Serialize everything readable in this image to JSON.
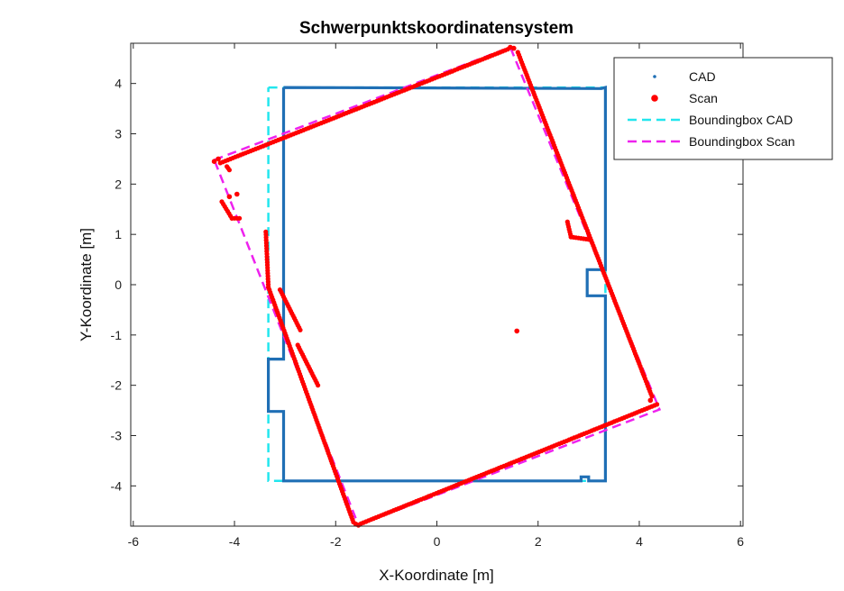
{
  "chart_data": {
    "type": "scatter",
    "title": "Schwerpunktskoordinatensystem",
    "xlabel": "X-Koordinate [m]",
    "ylabel": "Y-Koordinate [m]",
    "xlim": [
      -6.05,
      6.05
    ],
    "ylim": [
      -4.8,
      4.8
    ],
    "x_ticks": [
      -6,
      -4,
      -2,
      0,
      2,
      4,
      6
    ],
    "y_ticks": [
      -4,
      -3,
      -2,
      -1,
      0,
      1,
      2,
      3,
      4
    ],
    "grid": false,
    "legend_position": "top-right",
    "colors": {
      "cad": "#1f6fb5",
      "scan": "#ff0000",
      "bbox_cad": "#22e6ee",
      "bbox_scan": "#ee22ee"
    },
    "series": [
      {
        "name": "CAD",
        "kind": "polyline-dots",
        "points": [
          [
            -3.03,
            3.92
          ],
          [
            3.25,
            3.9
          ],
          [
            3.33,
            3.92
          ],
          [
            3.33,
            0.3
          ],
          [
            2.97,
            0.3
          ],
          [
            2.97,
            -0.22
          ],
          [
            3.33,
            -0.22
          ],
          [
            3.33,
            -3.9
          ],
          [
            3.0,
            -3.9
          ],
          [
            3.0,
            -3.82
          ],
          [
            2.85,
            -3.82
          ],
          [
            2.85,
            -3.9
          ],
          [
            -3.03,
            -3.9
          ],
          [
            -3.03,
            -2.52
          ],
          [
            -3.33,
            -2.52
          ],
          [
            -3.33,
            -1.48
          ],
          [
            -3.03,
            -1.48
          ],
          [
            -3.03,
            3.92
          ]
        ]
      },
      {
        "name": "Scan",
        "kind": "dots",
        "segments": [
          [
            [
              -4.28,
              2.42
            ],
            [
              1.4,
              4.68
            ]
          ],
          [
            [
              1.6,
              4.62
            ],
            [
              4.25,
              -2.22
            ]
          ],
          [
            [
              4.35,
              -2.38
            ],
            [
              -1.5,
              -4.75
            ]
          ],
          [
            [
              -1.65,
              -4.72
            ],
            [
              -3.33,
              -0.05
            ]
          ],
          [
            [
              -3.33,
              -0.05
            ],
            [
              -3.38,
              1.05
            ]
          ],
          [
            [
              -2.75,
              -1.2
            ],
            [
              -2.35,
              -2.0
            ]
          ],
          [
            [
              -3.1,
              -0.1
            ],
            [
              -2.7,
              -0.9
            ]
          ],
          [
            [
              -4.15,
              2.35
            ],
            [
              -4.1,
              2.28
            ]
          ],
          [
            [
              -4.25,
              1.65
            ],
            [
              -4.05,
              1.32
            ]
          ],
          [
            [
              -4.05,
              1.32
            ],
            [
              -3.9,
              1.32
            ]
          ],
          [
            [
              2.58,
              1.25
            ],
            [
              2.65,
              0.95
            ]
          ],
          [
            [
              2.65,
              0.95
            ],
            [
              3.0,
              0.9
            ]
          ]
        ],
        "points": [
          [
            -4.4,
            2.45
          ],
          [
            -3.95,
            1.8
          ],
          [
            -4.1,
            1.75
          ],
          [
            1.45,
            4.72
          ],
          [
            1.52,
            4.7
          ],
          [
            1.58,
            -0.92
          ],
          [
            4.22,
            -2.3
          ],
          [
            -1.55,
            -4.78
          ],
          [
            -1.6,
            -4.76
          ],
          [
            -4.32,
            2.5
          ]
        ]
      },
      {
        "name": "Boundingbox CAD",
        "kind": "dashed-line",
        "points": [
          [
            -3.33,
            3.92
          ],
          [
            3.33,
            3.92
          ],
          [
            3.33,
            -3.9
          ],
          [
            -3.33,
            -3.9
          ],
          [
            -3.33,
            3.92
          ]
        ]
      },
      {
        "name": "Boundingbox Scan",
        "kind": "dashed-line",
        "points": [
          [
            -4.4,
            2.48
          ],
          [
            1.45,
            4.72
          ],
          [
            4.4,
            -2.48
          ],
          [
            -1.55,
            -4.78
          ],
          [
            -4.4,
            2.48
          ]
        ]
      }
    ]
  }
}
